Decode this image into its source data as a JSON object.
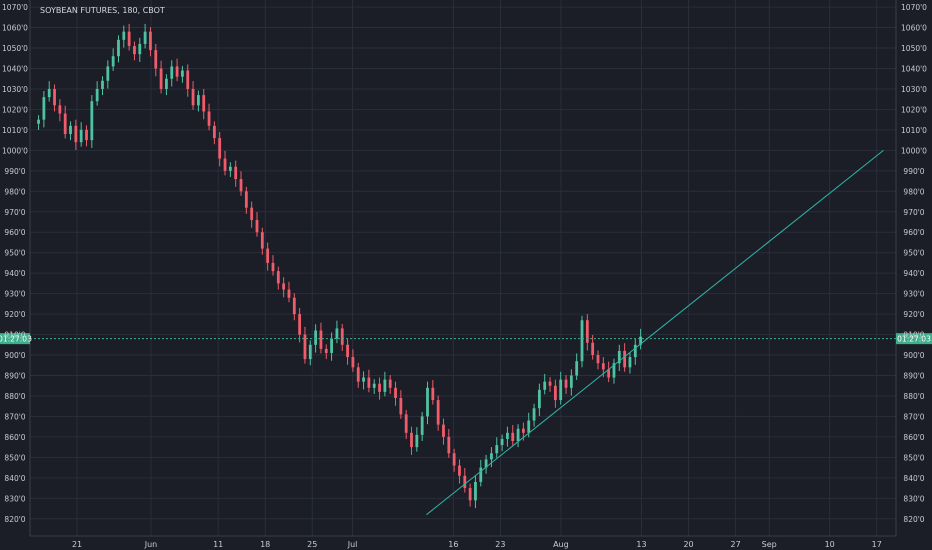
{
  "chart_data": {
    "type": "candlestick",
    "title": "SOYBEAN FUTURES, 180, CBOT",
    "ylim": [
      815,
      1072
    ],
    "y_ticks": [
      1070,
      1060,
      1050,
      1040,
      1030,
      1020,
      1010,
      1000,
      990,
      980,
      970,
      960,
      950,
      940,
      930,
      920,
      910,
      900,
      890,
      880,
      870,
      860,
      850,
      840,
      830,
      820
    ],
    "y_tick_labels": [
      "1070'0",
      "1060'0",
      "1050'0",
      "1040'0",
      "1030'0",
      "1020'0",
      "1010'0",
      "1000'0",
      "990'0",
      "980'0",
      "970'0",
      "960'0",
      "950'0",
      "940'0",
      "930'0",
      "920'0",
      "910'0",
      "900'0",
      "890'0",
      "880'0",
      "870'0",
      "860'0",
      "850'0",
      "840'0",
      "830'0",
      "820'0"
    ],
    "x_labels": [
      "21",
      "Jun",
      "11",
      "18",
      "25",
      "Jul",
      "16",
      "23",
      "Aug",
      "13",
      "20",
      "27",
      "Sep",
      "10",
      "17"
    ],
    "x_dates": [
      "2018-05-21",
      "2018-06-01",
      "2018-06-11",
      "2018-06-18",
      "2018-06-25",
      "2018-07-01",
      "2018-07-16",
      "2018-07-23",
      "2018-08-01",
      "2018-08-13",
      "2018-08-20",
      "2018-08-27",
      "2018-09-01",
      "2018-09-10",
      "2018-09-17"
    ],
    "current_price_label": "01:27:03",
    "current_price": 908,
    "up_color": "#4fc3a1",
    "down_color": "#ef5d6b",
    "trendline": {
      "color": "#2eb5a7",
      "points": [
        [
          "2018-07-12",
          822
        ],
        [
          "2018-09-18",
          1000
        ]
      ]
    },
    "series": [
      {
        "close": [
          [
            1.0,
            1015
          ],
          [
            2.5,
            1026
          ],
          [
            4.0,
            1030
          ],
          [
            5.5,
            1022
          ],
          [
            7.0,
            1018
          ],
          [
            8.5,
            1008
          ],
          [
            10.0,
            1012
          ],
          [
            11.5,
            1004
          ],
          [
            13.0,
            1010
          ],
          [
            14.5,
            1005
          ],
          [
            16.0,
            1024
          ],
          [
            17.5,
            1030
          ],
          [
            19.0,
            1034
          ],
          [
            20.5,
            1041
          ],
          [
            22.0,
            1046
          ],
          [
            23.5,
            1054
          ],
          [
            25.0,
            1058
          ],
          [
            26.5,
            1051
          ],
          [
            28.0,
            1047
          ],
          [
            29.5,
            1052
          ],
          [
            31.0,
            1058
          ],
          [
            32.5,
            1049
          ],
          [
            34.0,
            1040
          ],
          [
            35.5,
            1030
          ],
          [
            37.0,
            1035
          ],
          [
            38.5,
            1041
          ],
          [
            40.0,
            1036
          ],
          [
            41.5,
            1039
          ],
          [
            43.0,
            1030
          ],
          [
            44.5,
            1022
          ],
          [
            46.0,
            1027
          ],
          [
            47.5,
            1019
          ],
          [
            49.0,
            1012
          ],
          [
            50.5,
            1006
          ],
          [
            52.0,
            996
          ],
          [
            53.5,
            990
          ],
          [
            55.0,
            992
          ],
          [
            56.5,
            986
          ],
          [
            58.0,
            980
          ],
          [
            59.5,
            972
          ],
          [
            61.0,
            966
          ],
          [
            62.5,
            960
          ],
          [
            64.0,
            952
          ],
          [
            65.5,
            945
          ],
          [
            67.0,
            941
          ],
          [
            68.5,
            935
          ],
          [
            70.0,
            932
          ],
          [
            71.5,
            928
          ],
          [
            73.0,
            920
          ],
          [
            74.5,
            910
          ],
          [
            76.0,
            898
          ],
          [
            77.5,
            905
          ],
          [
            79.0,
            912
          ],
          [
            80.5,
            903
          ],
          [
            82.0,
            901
          ],
          [
            83.5,
            908
          ],
          [
            85.0,
            913
          ],
          [
            86.5,
            905
          ],
          [
            88.0,
            899
          ],
          [
            89.5,
            894
          ],
          [
            91.0,
            887
          ],
          [
            92.5,
            889
          ],
          [
            94.0,
            884
          ],
          [
            95.5,
            886
          ],
          [
            97.0,
            882
          ],
          [
            98.5,
            888
          ],
          [
            100.0,
            884
          ],
          [
            101.5,
            879
          ],
          [
            103.0,
            871
          ],
          [
            104.5,
            862
          ],
          [
            106.0,
            855
          ],
          [
            107.5,
            861
          ],
          [
            109.0,
            870
          ],
          [
            110.5,
            884
          ],
          [
            112.0,
            878
          ],
          [
            113.5,
            866
          ],
          [
            115.0,
            860
          ],
          [
            116.5,
            852
          ],
          [
            118.0,
            846
          ],
          [
            119.5,
            841
          ],
          [
            121.0,
            835
          ],
          [
            122.5,
            829
          ],
          [
            124.0,
            838
          ],
          [
            125.5,
            845
          ],
          [
            127.0,
            849
          ],
          [
            128.5,
            852
          ],
          [
            130.0,
            856
          ],
          [
            131.5,
            859
          ],
          [
            133.0,
            862
          ],
          [
            134.5,
            858
          ],
          [
            136.0,
            864
          ],
          [
            137.5,
            862
          ],
          [
            139.0,
            868
          ],
          [
            140.5,
            874
          ],
          [
            142.0,
            883
          ],
          [
            143.5,
            887
          ],
          [
            145.0,
            885
          ],
          [
            146.5,
            878
          ],
          [
            148.0,
            888
          ],
          [
            149.5,
            884
          ],
          [
            151.0,
            890
          ],
          [
            152.5,
            897
          ],
          [
            154.0,
            917
          ],
          [
            155.5,
            906
          ],
          [
            157.0,
            900
          ],
          [
            158.5,
            896
          ],
          [
            160.0,
            893
          ],
          [
            161.5,
            889
          ],
          [
            163.0,
            896
          ],
          [
            164.5,
            902
          ],
          [
            166.0,
            894
          ],
          [
            167.5,
            899
          ],
          [
            169.0,
            905
          ],
          [
            170.5,
            909
          ]
        ]
      }
    ]
  }
}
